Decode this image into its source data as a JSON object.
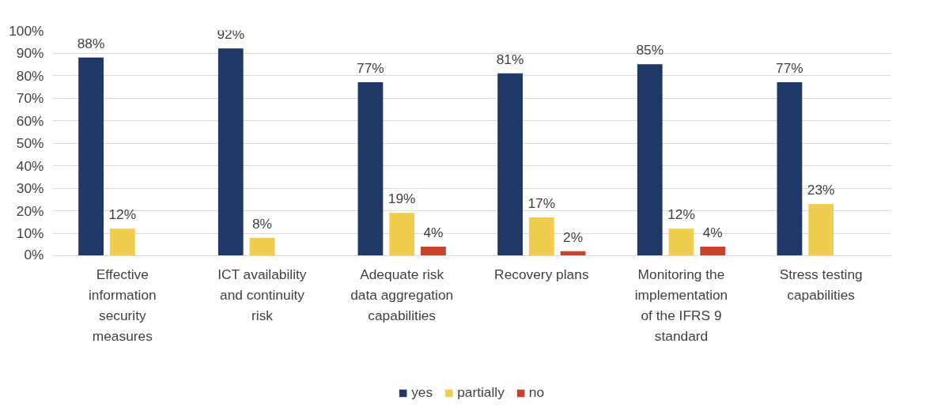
{
  "chart_data": {
    "type": "bar",
    "categories": [
      "Effective information security measures",
      "ICT availability and continuity risk",
      "Adequate risk data aggregation capabilities",
      "Recovery plans",
      "Monitoring the implementation of the IFRS 9 standard",
      "Stress testing capabilities"
    ],
    "series": [
      {
        "name": "yes",
        "color": "#203864",
        "values": [
          88,
          92,
          77,
          81,
          85,
          77
        ],
        "value_labels": [
          "88%",
          "92%",
          "77%",
          "81%",
          "85%",
          "77%"
        ]
      },
      {
        "name": "partially",
        "color": "#f0cd4e",
        "values": [
          12,
          8,
          19,
          17,
          12,
          23
        ],
        "value_labels": [
          "12%",
          "8%",
          "19%",
          "17%",
          "12%",
          "23%"
        ]
      },
      {
        "name": "no",
        "color": "#c5432c",
        "values": [
          null,
          null,
          4,
          2,
          4,
          null
        ],
        "value_labels": [
          null,
          null,
          "4%",
          "2%",
          "4%",
          null
        ]
      }
    ],
    "ylim": [
      0,
      100
    ],
    "yticks": [
      {
        "value": 0,
        "label": "0%"
      },
      {
        "value": 10,
        "label": "10%"
      },
      {
        "value": 20,
        "label": "20%"
      },
      {
        "value": 30,
        "label": "30%"
      },
      {
        "value": 40,
        "label": "40%"
      },
      {
        "value": 50,
        "label": "50%"
      },
      {
        "value": 60,
        "label": "60%"
      },
      {
        "value": 70,
        "label": "70%"
      },
      {
        "value": 80,
        "label": "80%"
      },
      {
        "value": 90,
        "label": "90%"
      },
      {
        "value": 100,
        "label": "100%"
      }
    ],
    "grid": "y",
    "legend": "bottom"
  }
}
